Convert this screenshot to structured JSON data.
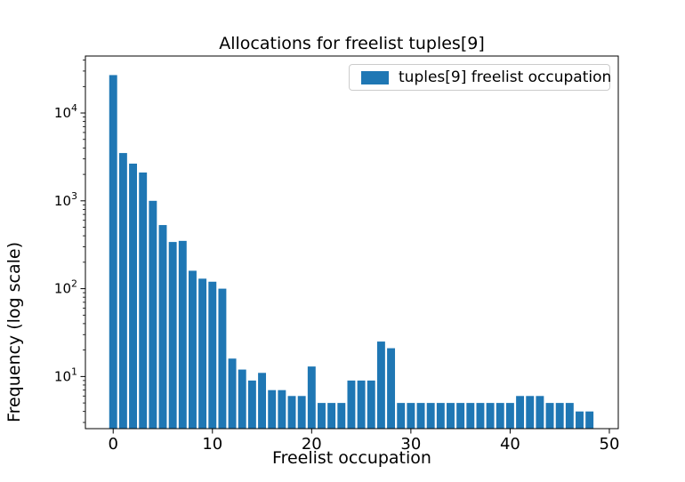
{
  "title": "Allocations for freelist tuples[9]",
  "axes": {
    "xlabel": "Freelist occupation",
    "ylabel": "Frequency (log scale)"
  },
  "legend": {
    "label": "tuples[9] freelist occupation",
    "swatch_color": "#1f77b4"
  },
  "chart_data": {
    "type": "bar",
    "title": "Allocations for freelist tuples[9]",
    "xlabel": "Freelist occupation",
    "ylabel": "Frequency (log scale)",
    "yscale": "log",
    "grid": false,
    "legend_label": "tuples[9] freelist occupation",
    "legend_position": "upper right",
    "bar_color": "#1f77b4",
    "bar_width": 0.8,
    "xlim": [
      -2.8,
      50.9
    ],
    "ylim": [
      2.55,
      44500
    ],
    "x_ticks": [
      0,
      10,
      20,
      30,
      40,
      50
    ],
    "y_ticks": [
      10,
      100,
      1000,
      10000
    ],
    "y_tick_exponents": [
      1,
      2,
      3,
      4
    ],
    "x": [
      0,
      1,
      2,
      3,
      4,
      5,
      6,
      7,
      8,
      9,
      10,
      11,
      12,
      13,
      14,
      15,
      16,
      17,
      18,
      19,
      20,
      21,
      22,
      23,
      24,
      25,
      26,
      27,
      28,
      29,
      30,
      31,
      32,
      33,
      34,
      35,
      36,
      37,
      38,
      39,
      40,
      41,
      42,
      43,
      44,
      45,
      46,
      47,
      48
    ],
    "values": [
      27000,
      3500,
      2650,
      2100,
      1000,
      530,
      340,
      350,
      160,
      130,
      120,
      100,
      16,
      12,
      9,
      11,
      7,
      7,
      6,
      6,
      13,
      5,
      5,
      5,
      9,
      9,
      9,
      25,
      21,
      5,
      5,
      5,
      5,
      5,
      5,
      5,
      5,
      5,
      5,
      5,
      5,
      6,
      6,
      6,
      5,
      5,
      5,
      4,
      4
    ]
  }
}
